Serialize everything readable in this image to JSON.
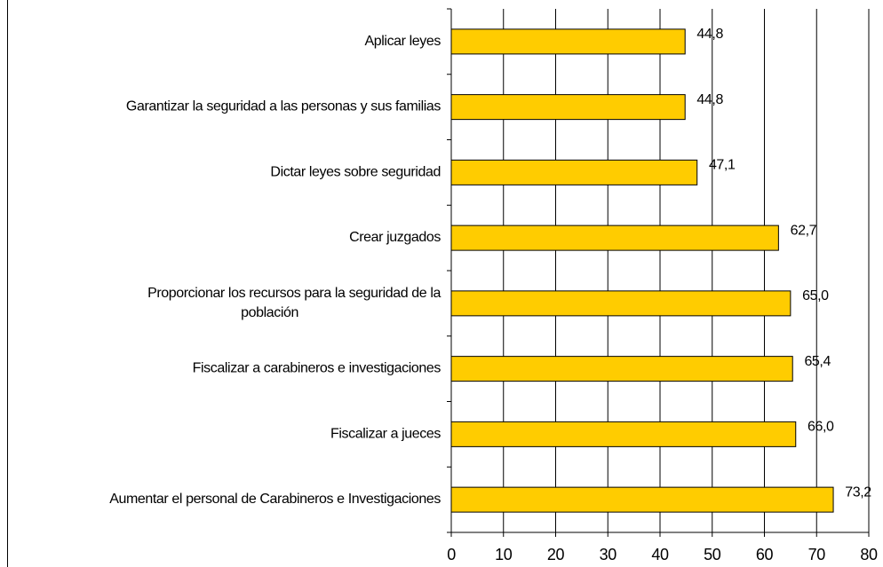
{
  "chart_data": {
    "type": "hbar",
    "categories": [
      "Aplicar leyes",
      "Garantizar la seguridad a las personas y sus familias",
      "Dictar leyes sobre seguridad",
      "Crear juzgados",
      "Proporcionar los recursos para la seguridad de la\npoblación",
      "Fiscalizar a carabineros e investigaciones",
      "Fiscalizar a jueces",
      "Aumentar el personal de Carabineros e Investigaciones"
    ],
    "values": [
      44.8,
      44.8,
      47.1,
      62.7,
      65.0,
      65.4,
      66.0,
      73.2
    ],
    "value_labels": [
      "44,8",
      "44,8",
      "47,1",
      "62,7",
      "65,0",
      "65,4",
      "66,0",
      "73,2"
    ],
    "color": "#ffcc00",
    "xlim": [
      0,
      80
    ],
    "xticks": [
      0,
      10,
      20,
      30,
      40,
      50,
      60,
      70,
      80
    ],
    "grid": true
  }
}
